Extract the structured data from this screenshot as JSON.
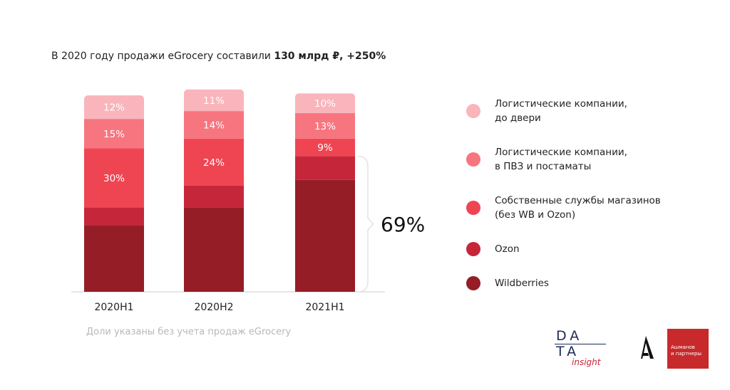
{
  "header": {
    "title_prefix": "В 2020 году продажи eGrocery составили ",
    "title_bold": "130 млрд ₽, +250%"
  },
  "colors": {
    "logistics_door": "#f9b5bb",
    "logistics_pickup": "#f7757f",
    "own_services": "#ef4553",
    "ozon": "#c6263a",
    "wildberries": "#951d26"
  },
  "chart_data": {
    "type": "bar",
    "stacked": true,
    "categories": [
      "2020H1",
      "2020H2",
      "2021H1"
    ],
    "unit": "%",
    "series": [
      {
        "name": "Wildberries",
        "color_key": "wildberries",
        "values": [
          34,
          43,
          57
        ]
      },
      {
        "name": "Ozon",
        "color_key": "ozon",
        "values": [
          9,
          11,
          12
        ]
      },
      {
        "name": "Собственные службы магазинов (без WB и Ozon)",
        "color_key": "own_services",
        "values": [
          30,
          24,
          9
        ]
      },
      {
        "name": "Логистические компании, в ПВЗ и постаматы",
        "color_key": "logistics_pickup",
        "values": [
          15,
          14,
          13
        ]
      },
      {
        "name": "Логистические компании, до двери",
        "color_key": "logistics_door",
        "values": [
          12,
          11,
          10
        ]
      }
    ],
    "data_labels": [
      [
        null,
        null,
        "30%",
        "15%",
        "12%"
      ],
      [
        null,
        null,
        "24%",
        "14%",
        "11%"
      ],
      [
        null,
        null,
        "9%",
        "13%",
        "10%"
      ]
    ],
    "ylim": [
      0,
      100
    ],
    "bracket": {
      "category": "2021H1",
      "label": "69%",
      "series": [
        "Wildberries",
        "Ozon"
      ]
    },
    "note": "Доли указаны без учета продаж eGrocery"
  },
  "legend": {
    "items": [
      {
        "line1": "Логистические компании,",
        "line2": "до двери",
        "color_key": "logistics_door"
      },
      {
        "line1": "Логистические компании,",
        "line2": "в ПВЗ и постаматы",
        "color_key": "logistics_pickup"
      },
      {
        "line1": "Собственные службы магазинов",
        "line2": "(без WB и Ozon)",
        "color_key": "own_services"
      },
      {
        "line1": "Ozon",
        "line2": "",
        "color_key": "ozon"
      },
      {
        "line1": "Wildberries",
        "line2": "",
        "color_key": "wildberries"
      }
    ]
  },
  "logos": {
    "data_row1": "DA",
    "data_row2": "TA",
    "data_insight": "insight",
    "ashmanov_line1": "Ашманов",
    "ashmanov_line2": "и партнеры"
  }
}
